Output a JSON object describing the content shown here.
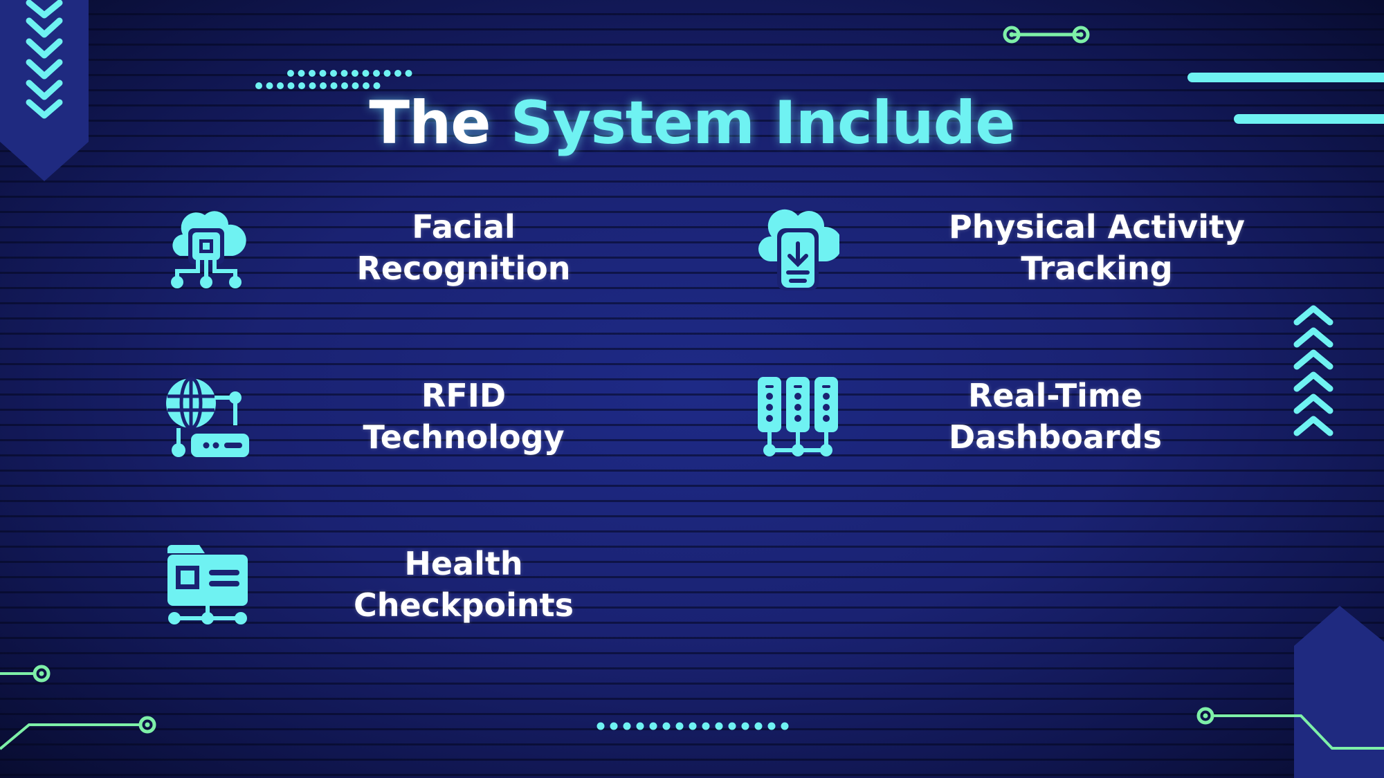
{
  "slide": {
    "title_white": "The",
    "title_accent": "System Include"
  },
  "features": [
    {
      "line1": "Facial",
      "line2": "Recognition",
      "icon": "cloud-chip-network-icon"
    },
    {
      "line1": "Physical Activity",
      "line2": "Tracking",
      "icon": "cloud-phone-download-icon"
    },
    {
      "line1": "RFID",
      "line2": "Technology",
      "icon": "globe-router-icon"
    },
    {
      "line1": "Real-Time",
      "line2": "Dashboards",
      "icon": "server-racks-icon"
    },
    {
      "line1": "Health",
      "line2": "Checkpoints",
      "icon": "folder-network-icon"
    }
  ],
  "colors": {
    "background": "#1a2272",
    "accent": "#6ff2f2",
    "circuit": "#7ef0a8",
    "text": "#ffffff"
  }
}
